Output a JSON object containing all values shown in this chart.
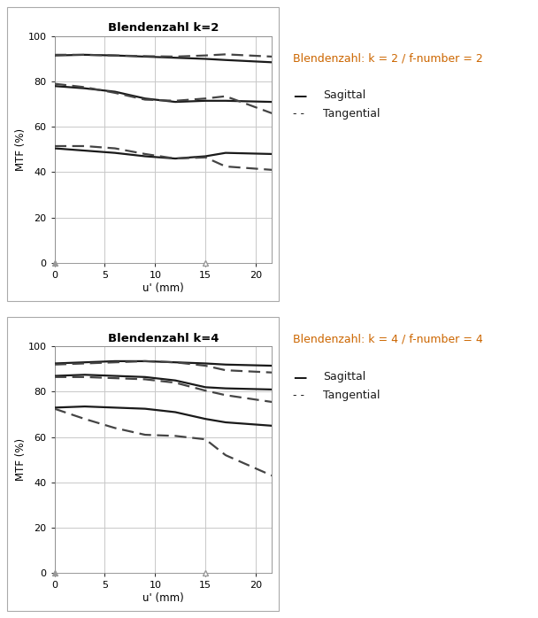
{
  "chart1": {
    "title": "Blendenzahl k=2",
    "annotation": "Blendenzahl: k = 2 / f-number = 2",
    "curves": [
      {
        "x": [
          0,
          3,
          6,
          9,
          12,
          15,
          17,
          21.6
        ],
        "y": [
          91.5,
          91.8,
          91.5,
          91.0,
          90.5,
          90.0,
          89.5,
          88.5
        ],
        "style": "solid",
        "lw": 1.6,
        "color": "#1a1a1a"
      },
      {
        "x": [
          0,
          3,
          6,
          9,
          12,
          15,
          17,
          21.6
        ],
        "y": [
          91.8,
          91.8,
          91.5,
          91.2,
          91.0,
          91.5,
          92.0,
          91.0
        ],
        "style": "dashed",
        "lw": 1.6,
        "color": "#444444"
      },
      {
        "x": [
          0,
          3,
          6,
          9,
          12,
          15,
          17,
          21.6
        ],
        "y": [
          78.0,
          77.0,
          75.5,
          72.5,
          71.0,
          71.5,
          71.5,
          71.0
        ],
        "style": "solid",
        "lw": 1.6,
        "color": "#1a1a1a"
      },
      {
        "x": [
          0,
          3,
          6,
          9,
          12,
          15,
          17,
          21.6
        ],
        "y": [
          79.0,
          77.5,
          75.0,
          72.0,
          71.5,
          72.5,
          73.5,
          66.0
        ],
        "style": "dashed",
        "lw": 1.6,
        "color": "#444444"
      },
      {
        "x": [
          0,
          3,
          6,
          9,
          12,
          15,
          17,
          21.6
        ],
        "y": [
          50.5,
          49.5,
          48.5,
          47.0,
          46.0,
          47.0,
          48.5,
          48.0
        ],
        "style": "solid",
        "lw": 1.6,
        "color": "#1a1a1a"
      },
      {
        "x": [
          0,
          3,
          6,
          9,
          12,
          15,
          17,
          21.6
        ],
        "y": [
          51.5,
          51.5,
          50.5,
          48.0,
          46.0,
          46.5,
          42.5,
          41.0
        ],
        "style": "dashed",
        "lw": 1.6,
        "color": "#444444"
      }
    ]
  },
  "chart2": {
    "title": "Blendenzahl k=4",
    "annotation": "Blendenzahl: k = 4 / f-number = 4",
    "curves": [
      {
        "x": [
          0,
          3,
          6,
          9,
          12,
          15,
          17,
          21.6
        ],
        "y": [
          92.5,
          93.0,
          93.5,
          93.5,
          93.0,
          92.5,
          92.0,
          91.5
        ],
        "style": "solid",
        "lw": 1.6,
        "color": "#1a1a1a"
      },
      {
        "x": [
          0,
          3,
          6,
          9,
          12,
          15,
          17,
          21.6
        ],
        "y": [
          92.0,
          92.5,
          93.0,
          93.5,
          93.0,
          91.5,
          89.5,
          88.5
        ],
        "style": "dashed",
        "lw": 1.6,
        "color": "#444444"
      },
      {
        "x": [
          0,
          3,
          6,
          9,
          12,
          15,
          17,
          21.6
        ],
        "y": [
          87.0,
          87.5,
          87.0,
          86.5,
          85.0,
          82.0,
          81.5,
          81.0
        ],
        "style": "solid",
        "lw": 1.6,
        "color": "#1a1a1a"
      },
      {
        "x": [
          0,
          3,
          6,
          9,
          12,
          15,
          17,
          21.6
        ],
        "y": [
          86.5,
          86.5,
          86.0,
          85.5,
          84.0,
          80.5,
          78.5,
          75.5
        ],
        "style": "dashed",
        "lw": 1.6,
        "color": "#444444"
      },
      {
        "x": [
          0,
          3,
          6,
          9,
          12,
          15,
          17,
          21.6
        ],
        "y": [
          73.0,
          73.5,
          73.0,
          72.5,
          71.0,
          68.0,
          66.5,
          65.0
        ],
        "style": "solid",
        "lw": 1.6,
        "color": "#1a1a1a"
      },
      {
        "x": [
          0,
          3,
          6,
          9,
          12,
          15,
          17,
          21.6
        ],
        "y": [
          72.5,
          68.0,
          64.0,
          61.0,
          60.5,
          59.0,
          52.0,
          43.0
        ],
        "style": "dashed",
        "lw": 1.6,
        "color": "#444444"
      }
    ]
  },
  "xlabel": "u' (mm)",
  "ylabel": "MTF (%)",
  "xlim": [
    0,
    21.6
  ],
  "ylim": [
    0,
    100
  ],
  "xticks": [
    0,
    5,
    10,
    15,
    20
  ],
  "yticks": [
    0,
    20,
    40,
    60,
    80,
    100
  ],
  "grid_color": "#c8c8c8",
  "bg_color": "#ffffff",
  "legend_solid": "Sagittal",
  "legend_dashed": "Tangential",
  "triangle_x_filled": 0,
  "triangle_x_open": 15,
  "annot_color": "#cc6600",
  "text_color": "#1a1a1a",
  "box_color": "#aaaaaa",
  "title_fontsize": 9.5,
  "label_fontsize": 8.5,
  "tick_fontsize": 8.0,
  "annot_fontsize": 9.0,
  "legend_fontsize": 9.0
}
